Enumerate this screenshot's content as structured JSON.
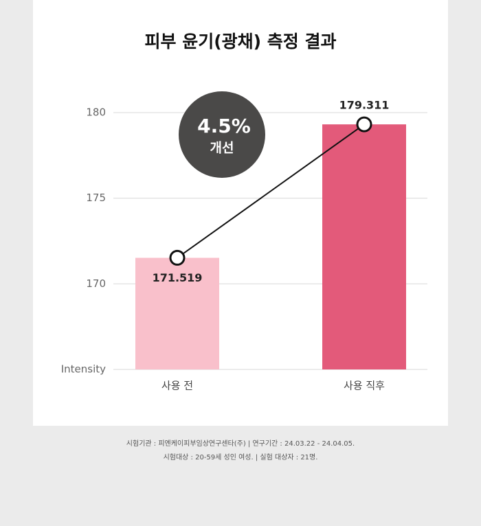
{
  "chart_data": {
    "type": "bar",
    "title": "피부 윤기(광채) 측정 결과",
    "categories": [
      "사용 전",
      "사용 직후"
    ],
    "values": [
      171.519,
      179.311
    ],
    "colors": [
      "#f9c0cb",
      "#e35a7a"
    ],
    "line_color": "#111111",
    "ylim": [
      165,
      181
    ],
    "yticks": [
      {
        "value": 165,
        "label": "Intensity"
      },
      170,
      175,
      180
    ],
    "grid": true,
    "annotations": [
      "4.5%",
      "개선"
    ]
  },
  "footnotes": [
    "시험기관 : 피엔케이피부임상연구센타(주) | 연구기간 : 24.03.22 - 24.04.05.",
    "시험대상 : 20-59세 성인 여성. | 실험 대상자 : 21명."
  ]
}
